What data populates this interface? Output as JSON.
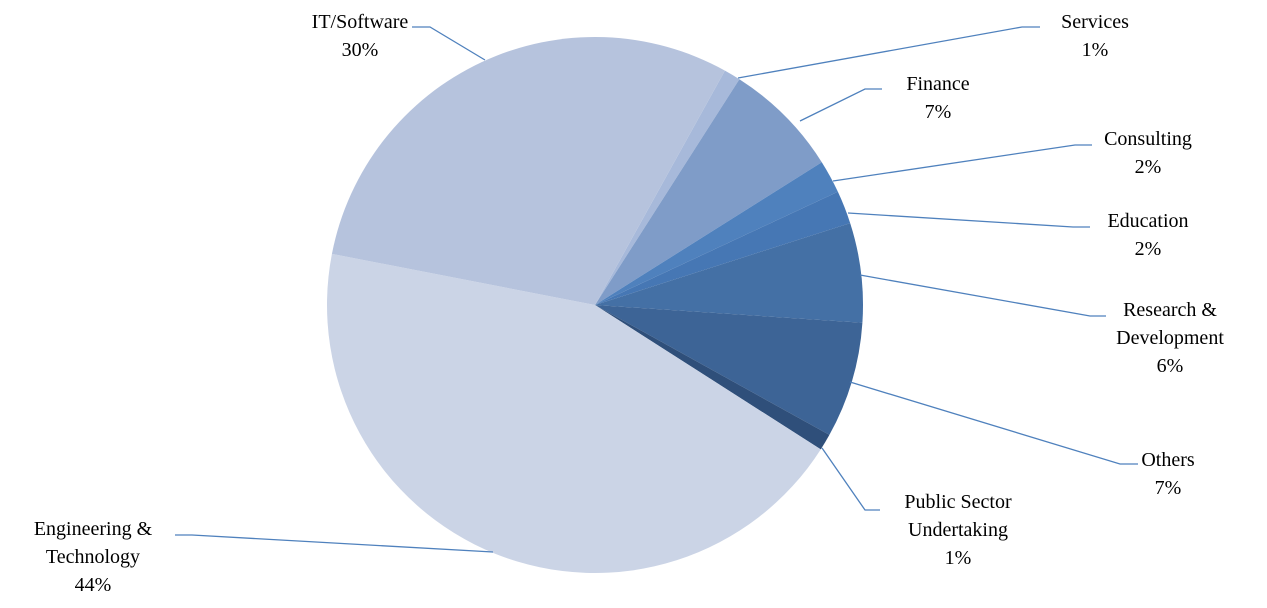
{
  "chart_data": {
    "type": "pie",
    "categories": [
      "Services",
      "Finance",
      "Consulting",
      "Education",
      "Research & Development",
      "Others",
      "Public Sector Undertaking",
      "Engineering & Technology",
      "IT/Software"
    ],
    "values": [
      1,
      7,
      2,
      2,
      6,
      7,
      1,
      44,
      30
    ],
    "value_labels": [
      "1%",
      "7%",
      "2%",
      "2%",
      "6%",
      "7%",
      "1%",
      "44%",
      "30%"
    ],
    "colors": [
      "#a7b9da",
      "#7f9cc8",
      "#4f81bd",
      "#4677b4",
      "#4470a5",
      "#3d6496",
      "#2f4f7a",
      "#cbd4e6",
      "#b6c3dd"
    ]
  }
}
